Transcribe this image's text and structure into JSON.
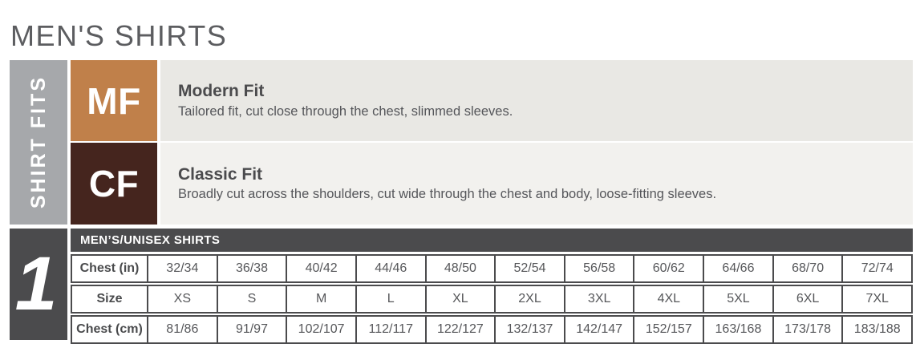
{
  "page": {
    "title": "MEN'S SHIRTS"
  },
  "colors": {
    "sidebar_gray": "#a6a8ab",
    "charcoal": "#4b4b4d",
    "modern_fit_copper": "#c0804a",
    "classic_fit_brown": "#45251e",
    "modern_row_bg": "#e9e8e4",
    "classic_row_bg": "#f2f1ee"
  },
  "fits_section": {
    "sidebar_label": "SHIRT FITS",
    "fits": [
      {
        "code": "MF",
        "name": "Modern Fit",
        "description": "Tailored fit, cut close through the chest, slimmed sleeves.",
        "color": "#c0804a",
        "row_bg": "#e9e8e4"
      },
      {
        "code": "CF",
        "name": "Classic Fit",
        "description": "Broadly cut across the shoulders, cut wide through the chest and body, loose-fitting sleeves.",
        "color": "#45251e",
        "row_bg": "#f2f1ee"
      }
    ]
  },
  "size_section": {
    "index_label": "1",
    "table": {
      "title": "MEN’S/UNISEX SHIRTS",
      "rows": [
        {
          "label": "Chest (in)",
          "values": [
            "32/34",
            "36/38",
            "40/42",
            "44/46",
            "48/50",
            "52/54",
            "56/58",
            "60/62",
            "64/66",
            "68/70",
            "72/74"
          ]
        },
        {
          "label": "Size",
          "values": [
            "XS",
            "S",
            "M",
            "L",
            "XL",
            "2XL",
            "3XL",
            "4XL",
            "5XL",
            "6XL",
            "7XL"
          ]
        },
        {
          "label": "Chest (cm)",
          "values": [
            "81/86",
            "91/97",
            "102/107",
            "112/117",
            "122/127",
            "132/137",
            "142/147",
            "152/157",
            "163/168",
            "173/178",
            "183/188"
          ]
        }
      ]
    }
  }
}
